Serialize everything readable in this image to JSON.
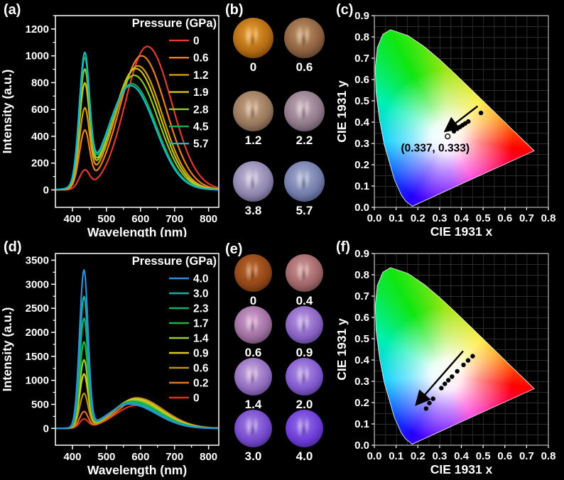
{
  "figure": {
    "background": "#000000",
    "panel_labels": {
      "a": "(a)",
      "b": "(b)",
      "c": "(c)",
      "d": "(d)",
      "e": "(e)",
      "f": "(f)"
    }
  },
  "chart_data": [
    {
      "id": "a",
      "type": "line",
      "xlabel": "Wavelength (nm)",
      "ylabel": "Intensity (a.u.)",
      "xlim": [
        350,
        830
      ],
      "ylim": [
        -130,
        1300
      ],
      "xticks": [
        400,
        500,
        600,
        700,
        800
      ],
      "xminor": [
        450,
        550,
        650,
        750
      ],
      "yticks": [
        0,
        200,
        400,
        600,
        800,
        1000,
        1200
      ],
      "yminor": [
        100,
        300,
        500,
        700,
        900,
        1100,
        1300
      ],
      "legend_title": "Pressure (GPa)",
      "legend_position": "top-right",
      "grid": false,
      "peak1_center": 436,
      "peak1_sigma": [
        16,
        14
      ],
      "peak2_sigma": [
        65,
        72
      ],
      "series": [
        {
          "label": "0",
          "color": "#e23b2e",
          "peak1_height": 130,
          "peak2_center": 620,
          "peak2_height": 1070
        },
        {
          "label": "0.6",
          "color": "#ef7d1d",
          "peak1_height": 410,
          "peak2_center": 603,
          "peak2_height": 1000
        },
        {
          "label": "1.2",
          "color": "#d49c16",
          "peak1_height": 560,
          "peak2_center": 592,
          "peak2_height": 925
        },
        {
          "label": "1.9",
          "color": "#cfc21d",
          "peak1_height": 735,
          "peak2_center": 586,
          "peak2_height": 905
        },
        {
          "label": "2.8",
          "color": "#8cc62c",
          "peak1_height": 830,
          "peak2_center": 581,
          "peak2_height": 855
        },
        {
          "label": "4.5",
          "color": "#17a94a",
          "peak1_height": 905,
          "peak2_center": 574,
          "peak2_height": 792
        },
        {
          "label": "5.7",
          "color": "#16b8cb",
          "peak1_height": 935,
          "peak2_center": 571,
          "peak2_height": 778
        }
      ]
    },
    {
      "id": "d",
      "type": "line",
      "xlabel": "Wavelength (nm)",
      "ylabel": "Intensity (a.u.)",
      "xlim": [
        350,
        830
      ],
      "ylim": [
        -350,
        3640
      ],
      "xticks": [
        400,
        500,
        600,
        700,
        800
      ],
      "xminor": [
        450,
        550,
        650,
        750
      ],
      "yticks": [
        0,
        500,
        1000,
        1500,
        2000,
        2500,
        3000,
        3500
      ],
      "yminor": [
        250,
        750,
        1250,
        1750,
        2250,
        2750,
        3250
      ],
      "legend_title": "Pressure (GPa)",
      "legend_position": "top-right",
      "grid": false,
      "peak1_center": 434,
      "peak1_sigma": [
        13,
        12
      ],
      "peak2_sigma": [
        62,
        78
      ],
      "series": [
        {
          "label": "4.0",
          "color": "#2e8ed6",
          "peak1_height": 3250,
          "peak2_center": 568,
          "peak2_height": 505
        },
        {
          "label": "3.0",
          "color": "#17aca2",
          "peak1_height": 2700,
          "peak2_center": 571,
          "peak2_height": 520
        },
        {
          "label": "2.3",
          "color": "#10ad6e",
          "peak1_height": 2250,
          "peak2_center": 574,
          "peak2_height": 545
        },
        {
          "label": "1.7",
          "color": "#1cb63a",
          "peak1_height": 1760,
          "peak2_center": 577,
          "peak2_height": 565
        },
        {
          "label": "1.4",
          "color": "#9cc934",
          "peak1_height": 1390,
          "peak2_center": 580,
          "peak2_height": 590
        },
        {
          "label": "0.9",
          "color": "#dcca1c",
          "peak1_height": 1100,
          "peak2_center": 584,
          "peak2_height": 615
        },
        {
          "label": "0.6",
          "color": "#bd9014",
          "peak1_height": 700,
          "peak2_center": 589,
          "peak2_height": 635
        },
        {
          "label": "0.2",
          "color": "#e0721c",
          "peak1_height": 330,
          "peak2_center": 594,
          "peak2_height": 600
        },
        {
          "label": "0",
          "color": "#de3222",
          "peak1_height": 175,
          "peak2_center": 588,
          "peak2_height": 480
        }
      ]
    },
    {
      "id": "c",
      "type": "scatter",
      "xlabel": "CIE 1931 x",
      "ylabel": "CIE 1931 y",
      "xlim": [
        0,
        0.8
      ],
      "ylim": [
        0,
        0.9
      ],
      "xticks": [
        "0.0",
        "0.1",
        "0.2",
        "0.3",
        "0.4",
        "0.5",
        "0.6",
        "0.7",
        "0.8"
      ],
      "yticks": [
        "0.0",
        "0.1",
        "0.2",
        "0.3",
        "0.4",
        "0.5",
        "0.6",
        "0.7",
        "0.8",
        "0.9"
      ],
      "grid": true,
      "grid_step": 0.05,
      "points": [
        [
          0.49,
          0.443
        ],
        [
          0.432,
          0.403
        ],
        [
          0.418,
          0.394
        ],
        [
          0.406,
          0.386
        ],
        [
          0.394,
          0.378
        ],
        [
          0.381,
          0.369
        ],
        [
          0.366,
          0.357
        ]
      ],
      "open_point": [
        0.337,
        0.333
      ],
      "annotation": "(0.337, 0.333)",
      "annotation_pos": [
        0.28,
        0.262
      ],
      "arrow": {
        "from": [
          0.475,
          0.475
        ],
        "to": [
          0.325,
          0.357
        ]
      },
      "point_color": "#000000"
    },
    {
      "id": "f",
      "type": "scatter",
      "xlabel": "CIE 1931 x",
      "ylabel": "CIE 1931 y",
      "xlim": [
        0,
        0.8
      ],
      "ylim": [
        0,
        0.9
      ],
      "xticks": [
        "0.0",
        "0.1",
        "0.2",
        "0.3",
        "0.4",
        "0.5",
        "0.6",
        "0.7",
        "0.8"
      ],
      "yticks": [
        "0.0",
        "0.1",
        "0.2",
        "0.3",
        "0.4",
        "0.5",
        "0.6",
        "0.7",
        "0.8",
        "0.9"
      ],
      "grid": true,
      "grid_step": 0.05,
      "points": [
        [
          0.452,
          0.418
        ],
        [
          0.431,
          0.398
        ],
        [
          0.41,
          0.377
        ],
        [
          0.381,
          0.347
        ],
        [
          0.357,
          0.322
        ],
        [
          0.34,
          0.305
        ],
        [
          0.324,
          0.288
        ],
        [
          0.308,
          0.268
        ],
        [
          0.27,
          0.218
        ],
        [
          0.253,
          0.198
        ],
        [
          0.238,
          0.172
        ]
      ],
      "open_point": null,
      "annotation": "",
      "annotation_pos": null,
      "arrow": {
        "from": [
          0.408,
          0.442
        ],
        "to": [
          0.192,
          0.19
        ]
      },
      "point_color": "#000000"
    }
  ],
  "photos": {
    "b": {
      "items": [
        {
          "label": "0",
          "inner": "#eda335",
          "mid": "#b26a12",
          "outer": "#4a2a06"
        },
        {
          "label": "0.6",
          "inner": "#c79a6a",
          "mid": "#8a5f3e",
          "outer": "#3c281c"
        },
        {
          "label": "1.2",
          "inner": "#cfa987",
          "mid": "#96765c",
          "outer": "#40302a"
        },
        {
          "label": "2.2",
          "inner": "#cab3bd",
          "mid": "#8d7888",
          "outer": "#3e3340"
        },
        {
          "label": "3.8",
          "inner": "#c9c0dc",
          "mid": "#8d84ad",
          "outer": "#3a3550"
        },
        {
          "label": "5.7",
          "inner": "#aab2d4",
          "mid": "#717ba8",
          "outer": "#2e3252"
        }
      ]
    },
    "e": {
      "items": [
        {
          "label": "0",
          "inner": "#c06a2e",
          "mid": "#8f4517",
          "outer": "#401d08"
        },
        {
          "label": "0.4",
          "inner": "#d59a9b",
          "mid": "#9d6468",
          "outer": "#45282c"
        },
        {
          "label": "0.6",
          "inner": "#d9a6d4",
          "mid": "#9b6d9e",
          "outer": "#472f4d"
        },
        {
          "label": "0.9",
          "inner": "#c0a0e8",
          "mid": "#8560c0",
          "outer": "#3b2766"
        },
        {
          "label": "1.4",
          "inner": "#cfade0",
          "mid": "#8f6cbe",
          "outer": "#402a62"
        },
        {
          "label": "2.0",
          "inner": "#b897e8",
          "mid": "#7e57cc",
          "outer": "#37225e"
        },
        {
          "label": "3.0",
          "inner": "#a985e5",
          "mid": "#7247cc",
          "outer": "#31205c"
        },
        {
          "label": "4.0",
          "inner": "#9a76e8",
          "mid": "#6a3ad6",
          "outer": "#2d1a5e"
        }
      ]
    }
  }
}
